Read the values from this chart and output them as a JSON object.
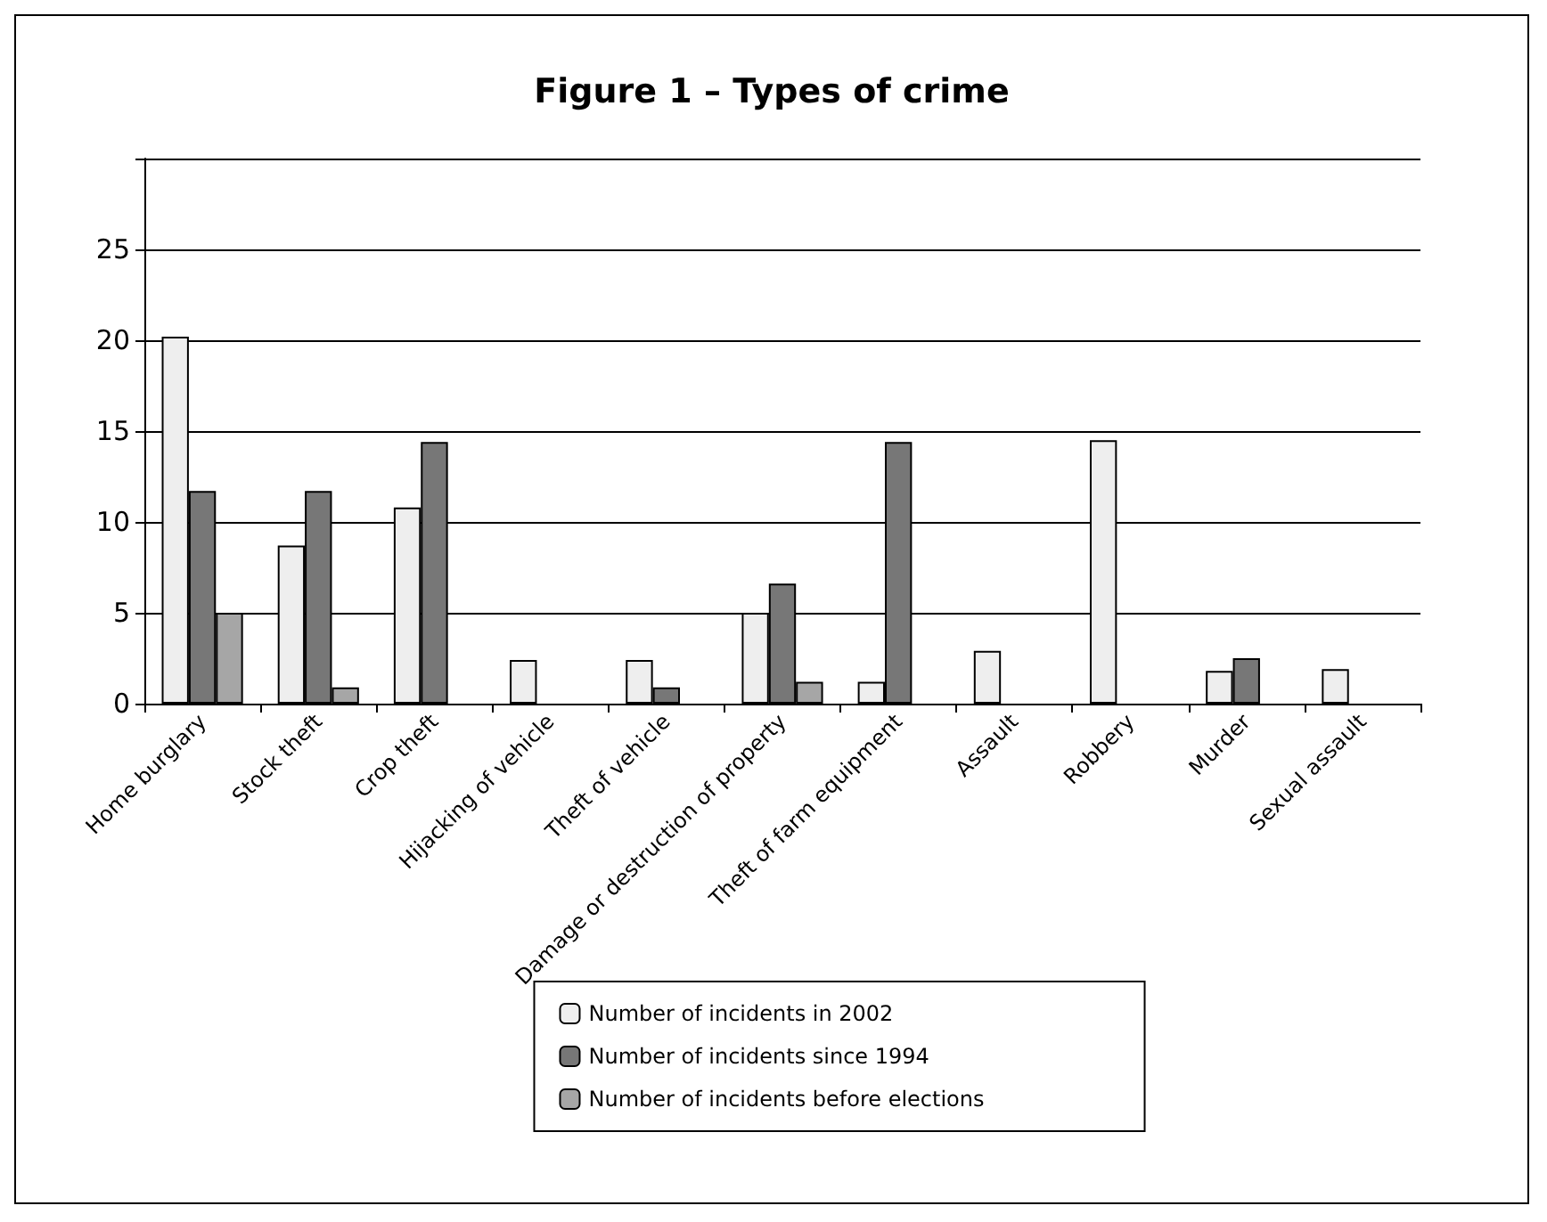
{
  "chart_data": {
    "type": "bar",
    "title": "Figure 1 – Types of crime",
    "categories": [
      "Home burglary",
      "Stock theft",
      "Crop theft",
      "Hijacking of vehicle",
      "Theft of vehicle",
      "Damage or destruction of property",
      "Theft of farm equipment",
      "Assault",
      "Robbery",
      "Murder",
      "Sexual assault"
    ],
    "series": [
      {
        "name": "Number of incidents in 2002",
        "color": "#eeeeee",
        "values": [
          20.2,
          8.7,
          10.8,
          2.4,
          2.4,
          5.0,
          1.2,
          2.9,
          14.5,
          1.8,
          1.9
        ]
      },
      {
        "name": "Number of incidents since 1994",
        "color": "#777777",
        "values": [
          11.7,
          11.7,
          14.4,
          null,
          0.9,
          6.6,
          14.4,
          null,
          null,
          2.5,
          null
        ]
      },
      {
        "name": "Number of incidents before elections",
        "color": "#a6a6a6",
        "values": [
          5.0,
          0.9,
          null,
          null,
          null,
          1.2,
          null,
          null,
          null,
          null,
          null
        ]
      }
    ],
    "ylim": [
      0,
      30
    ],
    "yticks": [
      0,
      5,
      10,
      15,
      20,
      25,
      {
        "value": 30,
        "label": null
      }
    ],
    "grid": "y",
    "legend": "bottom"
  }
}
